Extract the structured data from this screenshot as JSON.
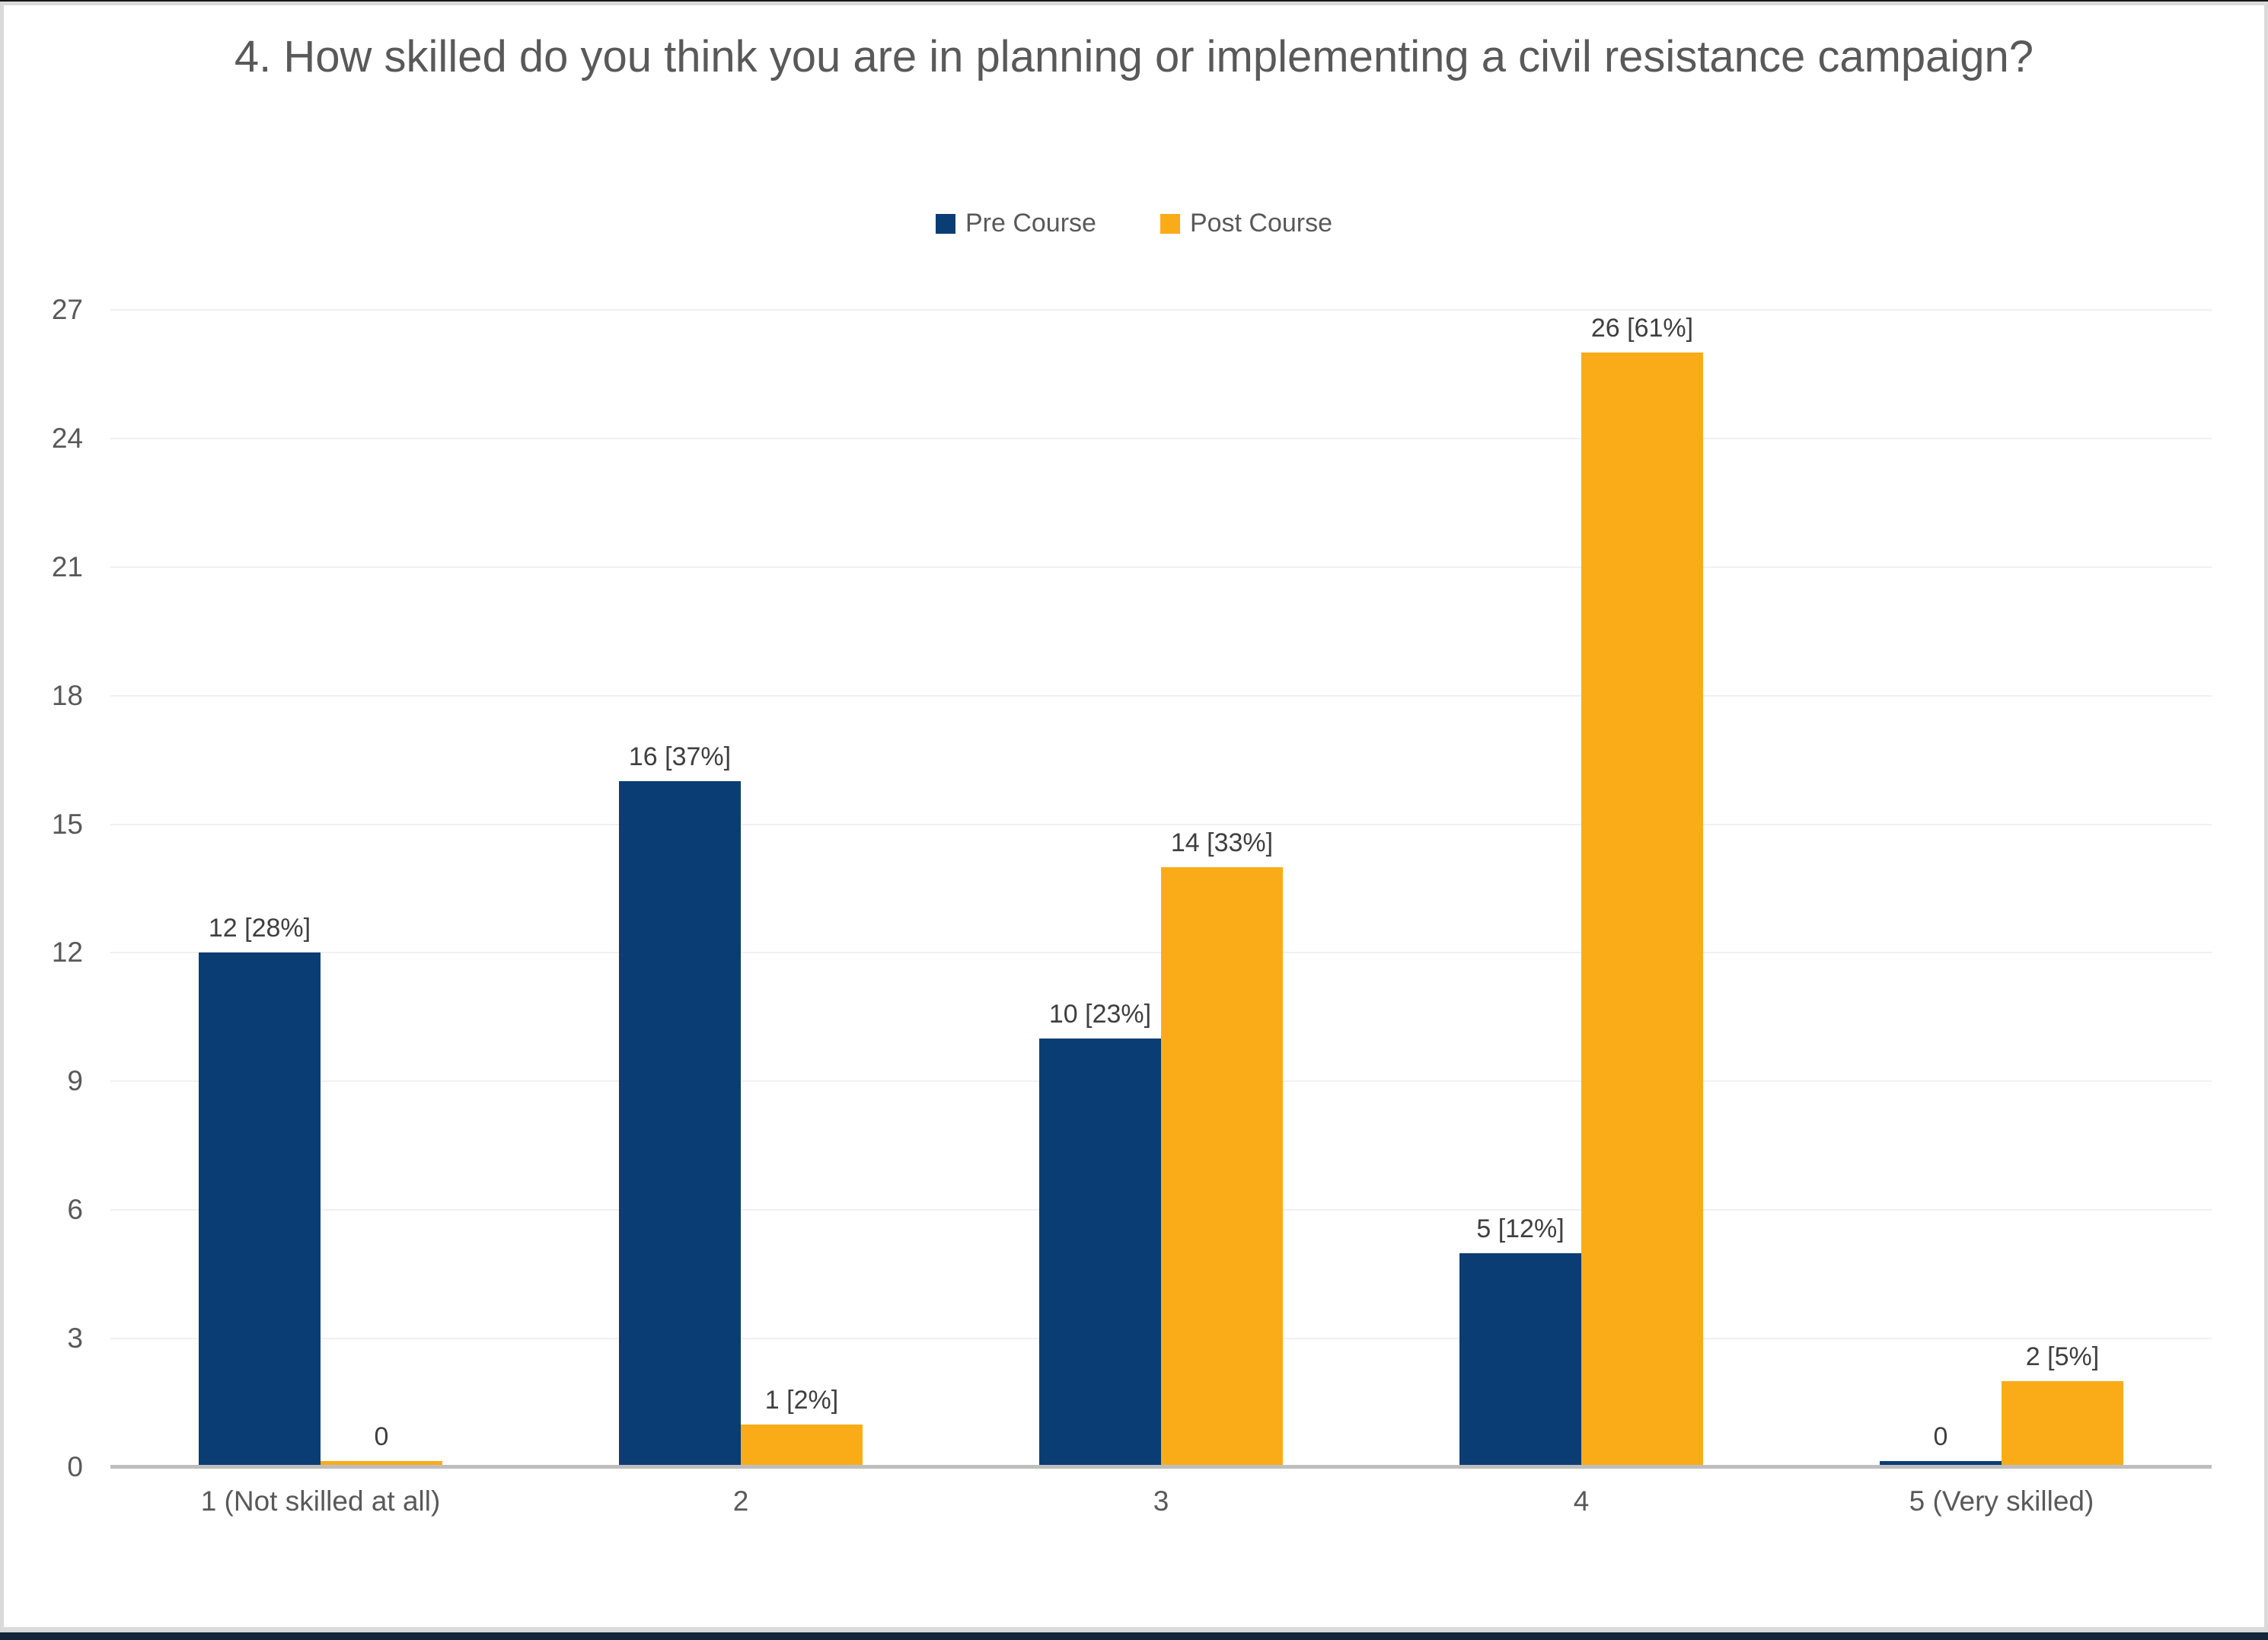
{
  "window": {
    "frame_color": "#161616",
    "mat_color": "#dadada",
    "bottom_bar_color": "#14253a",
    "background": "#ffffff"
  },
  "chart_data": {
    "type": "bar",
    "title": "4. How skilled do you think you are in planning or implementing a civil resistance campaign?",
    "categories": [
      "1 (Not skilled at all)",
      "2",
      "3",
      "4",
      "5 (Very skilled)"
    ],
    "series": [
      {
        "name": "Pre Course",
        "color": "#0A3D73",
        "values": [
          12,
          16,
          10,
          5,
          0
        ],
        "data_labels": [
          "12 [28%]",
          "16 [37%]",
          "10 [23%]",
          "5 [12%]",
          "0"
        ]
      },
      {
        "name": "Post Course",
        "color": "#FAAC18",
        "values": [
          0,
          1,
          14,
          26,
          2
        ],
        "data_labels": [
          "0",
          "1 [2%]",
          "14 [33%]",
          "26 [61%]",
          "2 [5%]"
        ]
      }
    ],
    "y_axis": {
      "min": 0,
      "max": 27,
      "step": 3,
      "tick_labels": [
        "0",
        "3",
        "6",
        "9",
        "12",
        "15",
        "18",
        "21",
        "24",
        "27"
      ]
    },
    "grid": true,
    "legend_position": "top-center"
  },
  "styles": {
    "title_color": "#595959",
    "axis_label_color": "#595959",
    "data_label_color": "#3f3f3f",
    "gridline_color": "#f0f0f0",
    "baseline_color": "#bebebe"
  }
}
